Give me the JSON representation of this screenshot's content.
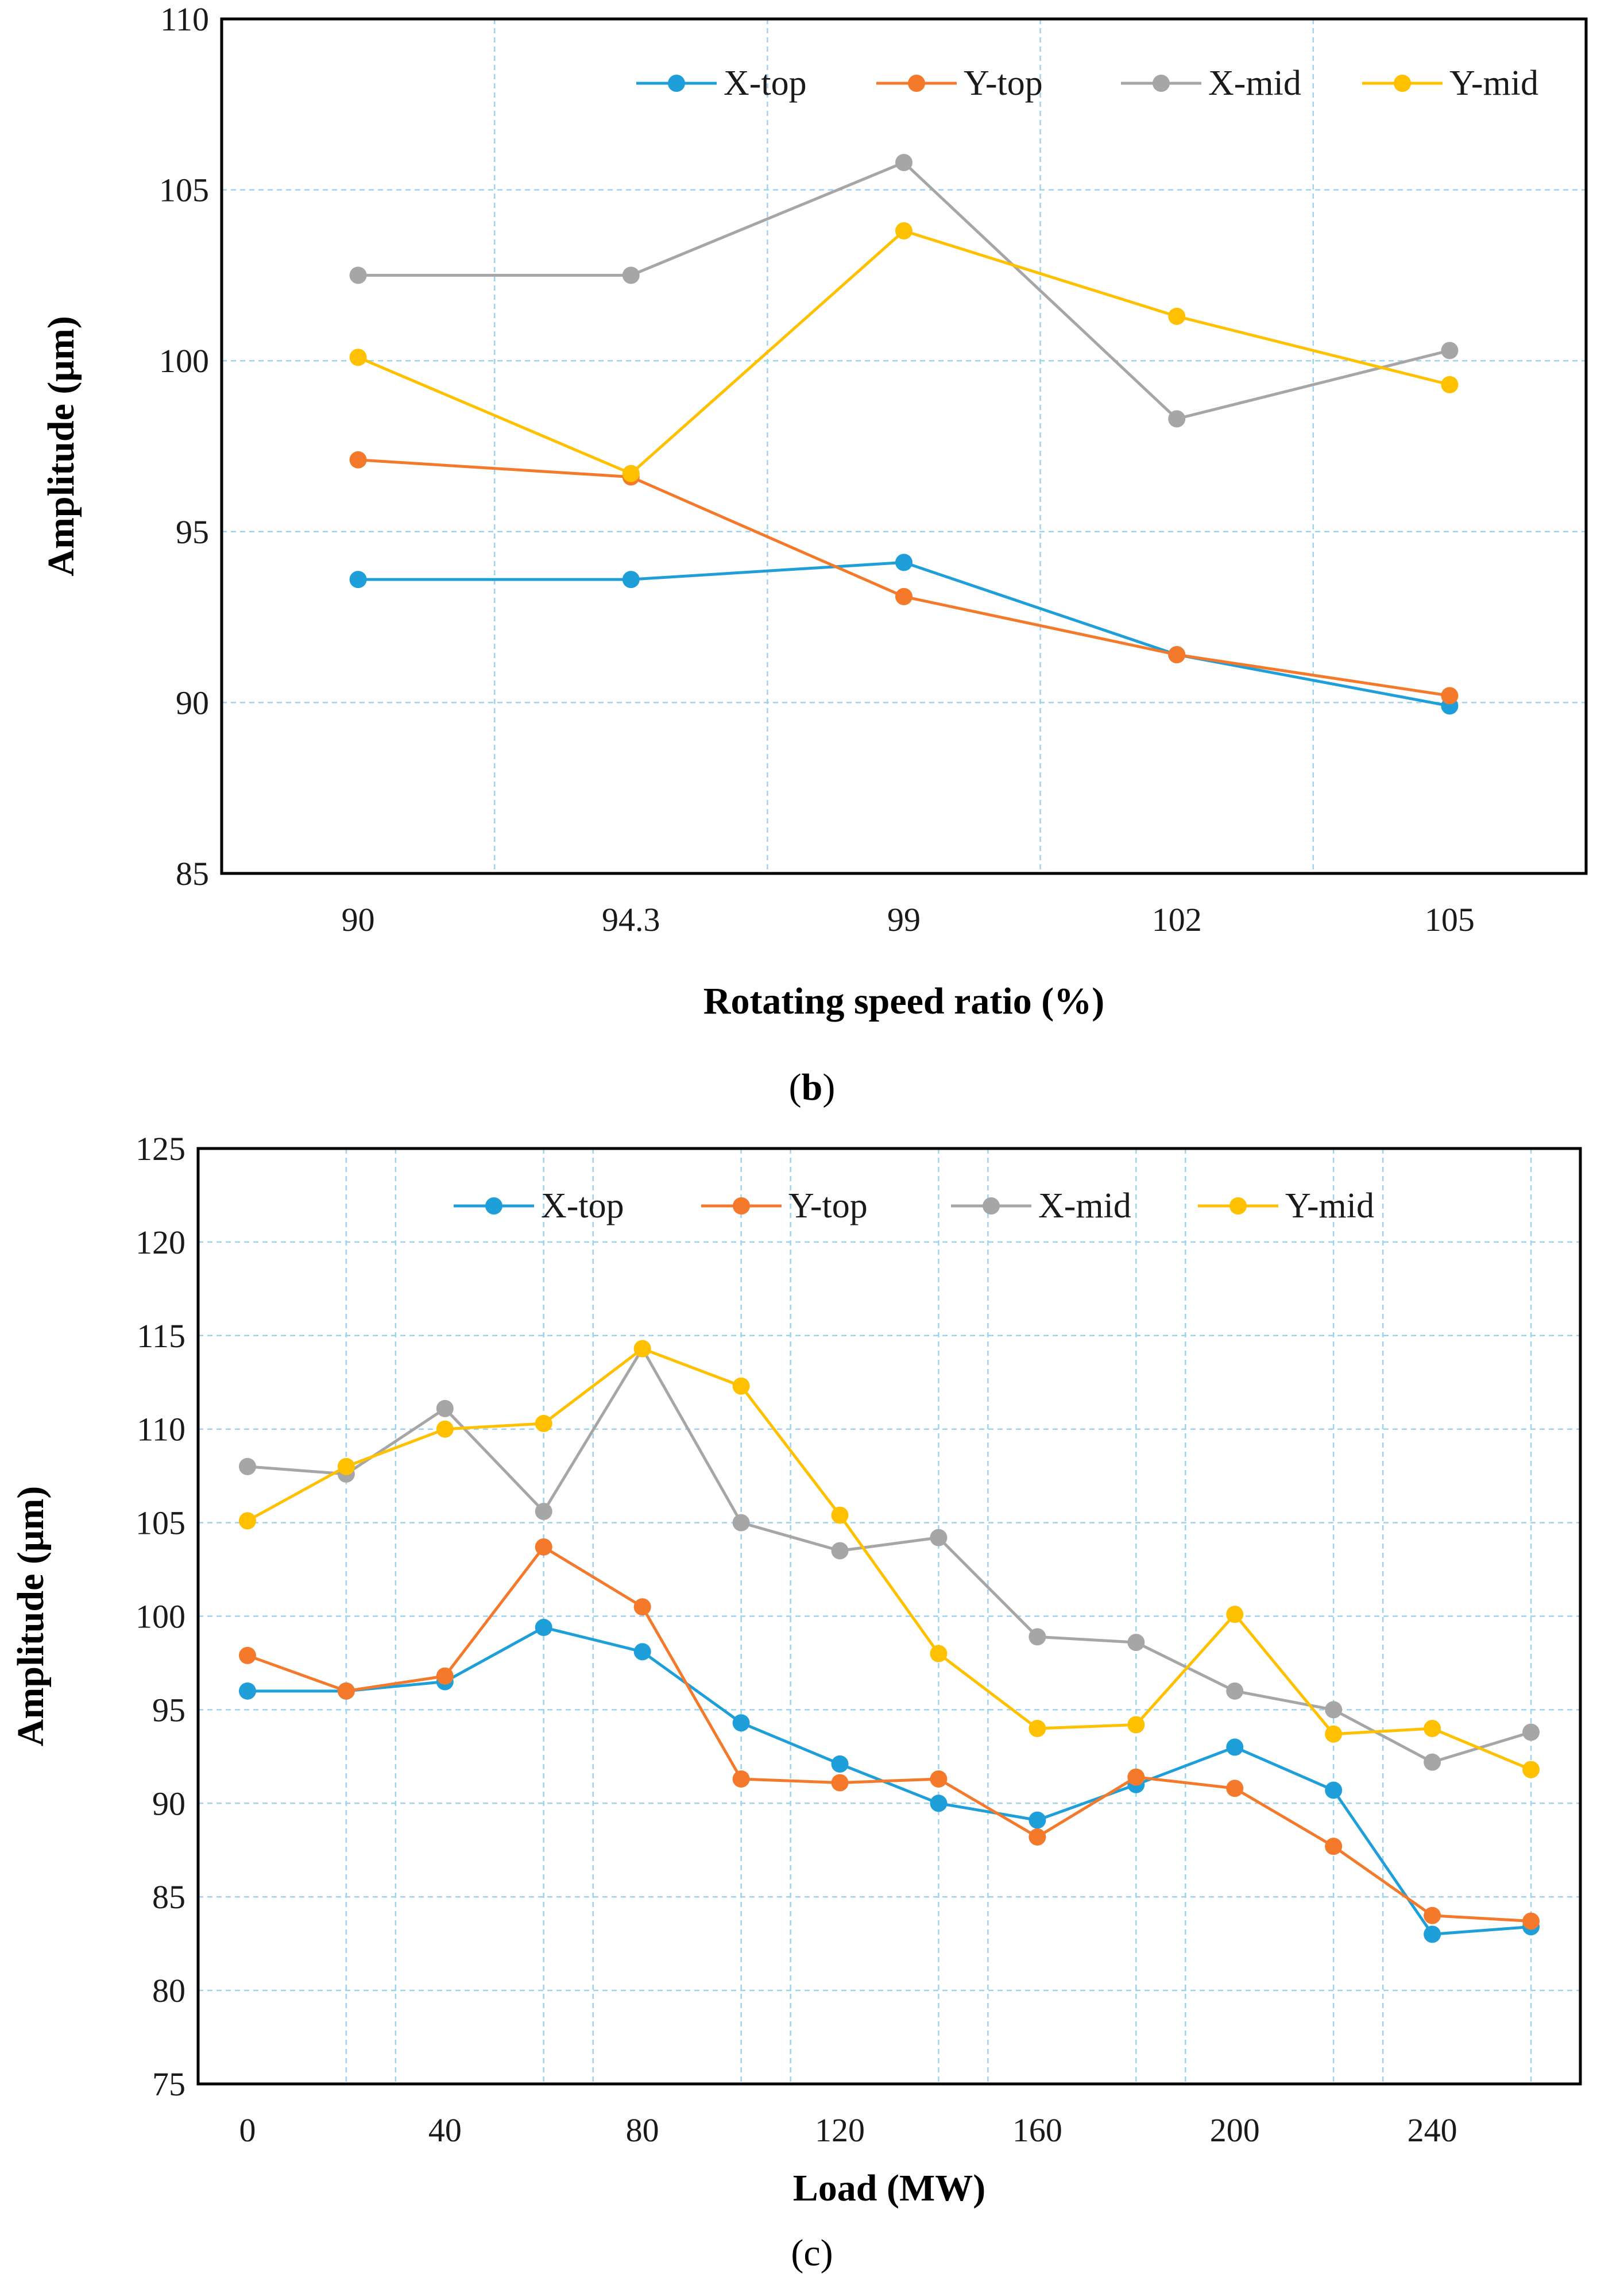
{
  "colors": {
    "X-top": "#1f9fd9",
    "Y-top": "#f4792a",
    "X-mid": "#a6a6a6",
    "Y-mid": "#ffc000",
    "grid": "#9dd3ee"
  },
  "chart_data": [
    {
      "type": "line",
      "panel": "b",
      "title": "",
      "xlabel": "Rotating speed ratio (%)",
      "ylabel": "Amplitude (μm)",
      "categories": [
        "90",
        "94.3",
        "99",
        "102",
        "105"
      ],
      "ylim": [
        85,
        110
      ],
      "yticks": [
        85,
        90,
        95,
        100,
        105,
        110
      ],
      "grid": true,
      "legend": "top, inside plot",
      "series": [
        {
          "name": "X-top",
          "values": [
            93.6,
            93.6,
            94.1,
            91.4,
            89.9
          ]
        },
        {
          "name": "Y-top",
          "values": [
            97.1,
            96.6,
            93.1,
            91.4,
            90.2
          ]
        },
        {
          "name": "X-mid",
          "values": [
            102.5,
            102.5,
            105.8,
            98.3,
            100.3
          ]
        },
        {
          "name": "Y-mid",
          "values": [
            100.1,
            96.7,
            103.8,
            101.3,
            99.3
          ]
        }
      ]
    },
    {
      "type": "line",
      "panel": "c",
      "title": "",
      "xlabel": "Load (MW)",
      "ylabel": "Amplitude (μm)",
      "x": [
        0,
        20,
        40,
        60,
        80,
        100,
        120,
        140,
        160,
        180,
        200,
        220,
        240,
        260
      ],
      "xticks": [
        0,
        40,
        80,
        120,
        160,
        200,
        240
      ],
      "xlim": [
        -10,
        270
      ],
      "ylim": [
        75,
        125
      ],
      "yticks": [
        75,
        80,
        85,
        90,
        95,
        100,
        105,
        110,
        115,
        120,
        125
      ],
      "grid": true,
      "legend": "top, inside plot",
      "series": [
        {
          "name": "X-top",
          "values": [
            96.0,
            96.0,
            96.5,
            99.4,
            98.1,
            94.3,
            92.1,
            90.0,
            89.1,
            91.0,
            93.0,
            90.7,
            83.0,
            83.4
          ]
        },
        {
          "name": "Y-top",
          "values": [
            97.9,
            96.0,
            96.8,
            103.7,
            100.5,
            91.3,
            91.1,
            91.3,
            88.2,
            91.4,
            90.8,
            87.7,
            84.0,
            83.7
          ]
        },
        {
          "name": "X-mid",
          "values": [
            108.0,
            107.6,
            111.1,
            105.6,
            114.3,
            105.0,
            103.5,
            104.2,
            98.9,
            98.6,
            96.0,
            95.0,
            92.2,
            93.8
          ]
        },
        {
          "name": "Y-mid",
          "values": [
            105.1,
            108.0,
            110.0,
            110.3,
            114.3,
            112.3,
            105.4,
            98.0,
            94.0,
            94.2,
            100.1,
            93.7,
            94.0,
            91.8
          ]
        }
      ]
    }
  ],
  "panel_labels": [
    "b",
    "c"
  ]
}
